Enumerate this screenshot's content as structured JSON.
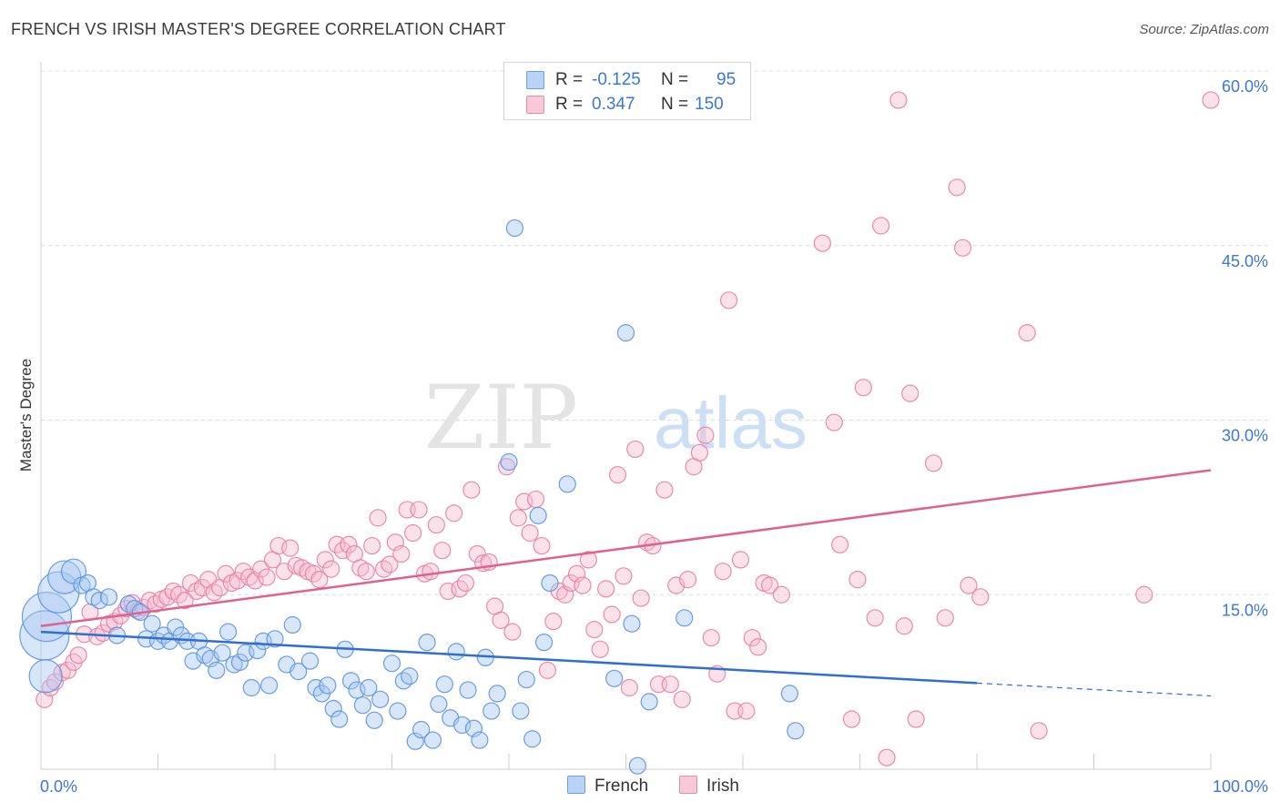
{
  "title": "FRENCH VS IRISH MASTER'S DEGREE CORRELATION CHART",
  "source": "Source: ZipAtlas.com",
  "watermark": {
    "part1": "ZIP",
    "part2": "atlas"
  },
  "legend": {
    "french": {
      "r_label": "R =",
      "r_value": "-0.125",
      "n_label": "N =",
      "n_value": "95"
    },
    "irish": {
      "r_label": "R =",
      "r_value": "0.347",
      "n_label": "N =",
      "n_value": "150"
    }
  },
  "bottom_legend": {
    "french": "French",
    "irish": "Irish"
  },
  "colors": {
    "french_fill": "#a9c8f2",
    "french_stroke": "#5b93de",
    "french_line": "#2e6fd0",
    "irish_fill": "#f6bcd0",
    "irish_stroke": "#e87fa3",
    "irish_line": "#e0608f",
    "tick_text": "#3a78d4",
    "grid": "#dcdcdc"
  },
  "chart_data": {
    "type": "scatter",
    "title": "FRENCH VS IRISH MASTER'S DEGREE CORRELATION CHART",
    "xlabel": "",
    "ylabel": "Master's Degree",
    "xlim": [
      0,
      100
    ],
    "ylim": [
      0,
      60
    ],
    "x_tick_labels": [
      "0.0%",
      "100.0%"
    ],
    "y_ticks": [
      15,
      30,
      45,
      60
    ],
    "y_tick_labels": [
      "15.0%",
      "30.0%",
      "45.0%",
      "60.0%"
    ],
    "grid": true,
    "series": [
      {
        "name": "French",
        "r": -0.125,
        "n": 95,
        "trend": {
          "x0": 0,
          "y0": 11.8,
          "x1": 80,
          "y1": 7.4,
          "dash_to_x": 100,
          "dash_to_y": 6.3
        },
        "points": [
          [
            0.3,
            11.5,
            3
          ],
          [
            0.5,
            13.1,
            3
          ],
          [
            0.4,
            8.0,
            2
          ],
          [
            1.5,
            15.2,
            2.5
          ],
          [
            2.0,
            16.5,
            2
          ],
          [
            2.8,
            17.0,
            1.5
          ],
          [
            3.5,
            15.8,
            1
          ],
          [
            4.0,
            16.0,
            1
          ],
          [
            4.5,
            14.8,
            1
          ],
          [
            5.0,
            14.5,
            1
          ],
          [
            5.8,
            14.8,
            1
          ],
          [
            6.5,
            11.5,
            1
          ],
          [
            7.5,
            14.2,
            1
          ],
          [
            8.0,
            13.8,
            1
          ],
          [
            8.5,
            13.5,
            1
          ],
          [
            9.0,
            11.2,
            1
          ],
          [
            9.5,
            12.5,
            1
          ],
          [
            10.0,
            11.0,
            1
          ],
          [
            10.5,
            11.5,
            1
          ],
          [
            11.0,
            11.0,
            1
          ],
          [
            11.5,
            12.2,
            1
          ],
          [
            12.0,
            11.5,
            1
          ],
          [
            12.5,
            11.0,
            1
          ],
          [
            13.0,
            9.3,
            1
          ],
          [
            13.5,
            11.0,
            1
          ],
          [
            14.0,
            9.8,
            1
          ],
          [
            14.5,
            9.5,
            1
          ],
          [
            15.0,
            8.5,
            1
          ],
          [
            15.5,
            10.0,
            1
          ],
          [
            16.0,
            11.8,
            1
          ],
          [
            16.5,
            9.0,
            1
          ],
          [
            17.0,
            9.2,
            1
          ],
          [
            17.5,
            10.0,
            1
          ],
          [
            18.0,
            7.0,
            1
          ],
          [
            18.5,
            10.2,
            1
          ],
          [
            19.0,
            11.0,
            1
          ],
          [
            19.5,
            7.2,
            1
          ],
          [
            20.0,
            11.2,
            1
          ],
          [
            21.0,
            9.0,
            1
          ],
          [
            21.5,
            12.4,
            1
          ],
          [
            22.0,
            8.4,
            1
          ],
          [
            23.0,
            9.3,
            1
          ],
          [
            23.5,
            7.0,
            1
          ],
          [
            24.0,
            6.5,
            1
          ],
          [
            24.5,
            7.2,
            1
          ],
          [
            25.0,
            5.2,
            1
          ],
          [
            25.5,
            4.3,
            1
          ],
          [
            26.0,
            10.3,
            1
          ],
          [
            26.5,
            7.6,
            1
          ],
          [
            27.0,
            6.8,
            1
          ],
          [
            27.5,
            5.5,
            1
          ],
          [
            28.0,
            7.0,
            1
          ],
          [
            28.5,
            4.2,
            1
          ],
          [
            29.0,
            6.0,
            1
          ],
          [
            30.0,
            9.1,
            1
          ],
          [
            30.5,
            5.0,
            1
          ],
          [
            31.0,
            7.6,
            1
          ],
          [
            31.5,
            8.0,
            1
          ],
          [
            32.0,
            2.4,
            1
          ],
          [
            32.5,
            3.4,
            1
          ],
          [
            33.0,
            10.9,
            1
          ],
          [
            33.5,
            2.5,
            1
          ],
          [
            34.0,
            5.6,
            1
          ],
          [
            34.5,
            7.3,
            1
          ],
          [
            35.0,
            4.4,
            1
          ],
          [
            35.5,
            10.1,
            1
          ],
          [
            36.0,
            3.8,
            1
          ],
          [
            36.5,
            6.8,
            1
          ],
          [
            37.0,
            3.5,
            1
          ],
          [
            37.5,
            2.5,
            1
          ],
          [
            38.0,
            9.6,
            1
          ],
          [
            38.5,
            5.0,
            1
          ],
          [
            39.0,
            6.5,
            1
          ],
          [
            40.0,
            26.4,
            1
          ],
          [
            40.5,
            46.5,
            1
          ],
          [
            41.0,
            5.0,
            1
          ],
          [
            41.5,
            7.7,
            1
          ],
          [
            42.0,
            2.6,
            1
          ],
          [
            42.5,
            21.8,
            1
          ],
          [
            43.0,
            10.9,
            1
          ],
          [
            43.5,
            16.0,
            1
          ],
          [
            45.0,
            24.5,
            1
          ],
          [
            49.0,
            7.8,
            1
          ],
          [
            50.0,
            37.5,
            1
          ],
          [
            50.5,
            12.5,
            1
          ],
          [
            51.0,
            0.3,
            1
          ],
          [
            52.0,
            5.8,
            1
          ],
          [
            55.0,
            13.0,
            1
          ],
          [
            64.0,
            6.5,
            1
          ],
          [
            64.5,
            3.3,
            1
          ]
        ]
      },
      {
        "name": "Irish",
        "r": 0.347,
        "n": 150,
        "trend": {
          "x0": 0,
          "y0": 12.3,
          "x1": 100,
          "y1": 25.7
        },
        "points": [
          [
            0.3,
            6.0,
            1
          ],
          [
            0.8,
            7.0,
            1
          ],
          [
            1.2,
            7.5,
            1
          ],
          [
            1.8,
            8.3,
            1
          ],
          [
            2.3,
            8.5,
            1
          ],
          [
            2.8,
            9.2,
            1
          ],
          [
            3.2,
            9.8,
            1
          ],
          [
            3.7,
            11.6,
            1
          ],
          [
            4.2,
            13.5,
            1
          ],
          [
            4.8,
            11.4,
            1
          ],
          [
            5.3,
            11.7,
            1
          ],
          [
            5.8,
            12.5,
            1
          ],
          [
            6.3,
            12.7,
            1
          ],
          [
            6.8,
            13.2,
            1
          ],
          [
            7.3,
            13.8,
            1
          ],
          [
            7.8,
            14.3,
            1
          ],
          [
            8.3,
            13.6,
            1
          ],
          [
            8.8,
            13.9,
            1
          ],
          [
            9.3,
            14.5,
            1
          ],
          [
            9.8,
            14.2,
            1
          ],
          [
            10.3,
            14.6,
            1
          ],
          [
            10.8,
            14.8,
            1
          ],
          [
            11.3,
            15.3,
            1
          ],
          [
            11.8,
            15.0,
            1
          ],
          [
            12.3,
            14.5,
            1
          ],
          [
            12.8,
            16.0,
            1
          ],
          [
            13.3,
            15.3,
            1
          ],
          [
            13.8,
            15.6,
            1
          ],
          [
            14.3,
            16.3,
            1
          ],
          [
            14.8,
            15.2,
            1
          ],
          [
            15.3,
            15.6,
            1
          ],
          [
            15.8,
            16.8,
            1
          ],
          [
            16.3,
            16.0,
            1
          ],
          [
            16.8,
            16.2,
            1
          ],
          [
            17.3,
            17.0,
            1
          ],
          [
            17.8,
            16.5,
            1
          ],
          [
            18.3,
            16.2,
            1
          ],
          [
            18.8,
            17.2,
            1
          ],
          [
            19.3,
            16.5,
            1
          ],
          [
            19.8,
            18.0,
            1
          ],
          [
            20.3,
            19.2,
            1
          ],
          [
            20.8,
            17.0,
            1
          ],
          [
            21.3,
            19.0,
            1
          ],
          [
            21.8,
            17.5,
            1
          ],
          [
            22.3,
            17.3,
            1
          ],
          [
            22.8,
            17.0,
            1
          ],
          [
            23.3,
            16.8,
            1
          ],
          [
            23.8,
            16.3,
            1
          ],
          [
            24.3,
            18.0,
            1
          ],
          [
            24.8,
            17.2,
            1
          ],
          [
            25.3,
            19.3,
            1
          ],
          [
            25.8,
            18.8,
            1
          ],
          [
            26.3,
            19.3,
            1
          ],
          [
            26.8,
            18.5,
            1
          ],
          [
            27.3,
            17.3,
            1
          ],
          [
            27.8,
            17.0,
            1
          ],
          [
            28.3,
            19.2,
            1
          ],
          [
            28.8,
            21.6,
            1
          ],
          [
            29.3,
            17.2,
            1
          ],
          [
            29.8,
            17.6,
            1
          ],
          [
            30.3,
            19.5,
            1
          ],
          [
            30.8,
            18.5,
            1
          ],
          [
            31.3,
            22.3,
            1
          ],
          [
            31.8,
            20.3,
            1
          ],
          [
            32.3,
            22.3,
            1
          ],
          [
            32.8,
            16.8,
            1
          ],
          [
            33.3,
            17.0,
            1
          ],
          [
            33.8,
            21.0,
            1
          ],
          [
            34.3,
            18.8,
            1
          ],
          [
            34.8,
            15.3,
            1
          ],
          [
            35.3,
            22.0,
            1
          ],
          [
            35.8,
            15.5,
            1
          ],
          [
            36.3,
            16.0,
            1
          ],
          [
            36.8,
            24.0,
            1
          ],
          [
            37.3,
            18.5,
            1
          ],
          [
            37.8,
            17.7,
            1
          ],
          [
            38.3,
            17.8,
            1
          ],
          [
            38.8,
            14.0,
            1
          ],
          [
            39.3,
            12.8,
            1
          ],
          [
            39.8,
            26.0,
            1
          ],
          [
            40.3,
            11.8,
            1
          ],
          [
            40.8,
            21.6,
            1
          ],
          [
            41.3,
            23.0,
            1
          ],
          [
            41.8,
            20.3,
            1
          ],
          [
            42.3,
            23.2,
            1
          ],
          [
            42.8,
            19.2,
            1
          ],
          [
            43.3,
            8.5,
            1
          ],
          [
            43.8,
            12.7,
            1
          ],
          [
            44.3,
            15.3,
            1
          ],
          [
            44.8,
            15.0,
            1
          ],
          [
            45.3,
            16.0,
            1
          ],
          [
            45.8,
            16.8,
            1
          ],
          [
            46.3,
            15.8,
            1
          ],
          [
            46.8,
            18.0,
            1
          ],
          [
            47.3,
            12.0,
            1
          ],
          [
            47.8,
            10.3,
            1
          ],
          [
            48.3,
            15.5,
            1
          ],
          [
            48.8,
            13.3,
            1
          ],
          [
            49.3,
            25.3,
            1
          ],
          [
            49.8,
            16.6,
            1
          ],
          [
            50.3,
            7.0,
            1
          ],
          [
            50.8,
            27.5,
            1
          ],
          [
            51.3,
            14.7,
            1
          ],
          [
            51.8,
            19.5,
            1
          ],
          [
            52.3,
            19.2,
            1
          ],
          [
            52.8,
            7.3,
            1
          ],
          [
            53.3,
            24.0,
            1
          ],
          [
            53.8,
            7.3,
            1
          ],
          [
            54.3,
            15.8,
            1
          ],
          [
            54.8,
            6.0,
            1
          ],
          [
            55.3,
            16.3,
            1
          ],
          [
            55.8,
            26.0,
            1
          ],
          [
            56.3,
            27.2,
            1
          ],
          [
            56.8,
            28.7,
            1
          ],
          [
            57.3,
            11.3,
            1
          ],
          [
            57.8,
            8.2,
            1
          ],
          [
            58.3,
            17.0,
            1
          ],
          [
            58.8,
            40.3,
            1
          ],
          [
            59.3,
            5.0,
            1
          ],
          [
            59.8,
            18.0,
            1
          ],
          [
            60.3,
            5.0,
            1
          ],
          [
            60.8,
            11.3,
            1
          ],
          [
            61.3,
            10.5,
            1
          ],
          [
            61.8,
            16.0,
            1
          ],
          [
            62.3,
            15.8,
            1
          ],
          [
            63.3,
            15.0,
            1
          ],
          [
            66.8,
            45.2,
            1
          ],
          [
            67.8,
            29.8,
            1
          ],
          [
            68.3,
            19.3,
            1
          ],
          [
            69.3,
            4.3,
            1
          ],
          [
            69.8,
            16.3,
            1
          ],
          [
            70.3,
            32.8,
            1
          ],
          [
            71.3,
            13.0,
            1
          ],
          [
            71.8,
            46.7,
            1
          ],
          [
            72.3,
            1.0,
            1
          ],
          [
            73.3,
            57.5,
            1
          ],
          [
            73.8,
            12.3,
            1
          ],
          [
            74.3,
            32.3,
            1
          ],
          [
            74.8,
            4.3,
            1
          ],
          [
            76.3,
            26.3,
            1
          ],
          [
            77.3,
            13.0,
            1
          ],
          [
            78.3,
            50.0,
            1
          ],
          [
            78.8,
            44.8,
            1
          ],
          [
            79.3,
            15.8,
            1
          ],
          [
            80.3,
            14.8,
            1
          ],
          [
            84.3,
            37.5,
            1
          ],
          [
            85.3,
            3.3,
            1
          ],
          [
            94.3,
            15.0,
            1
          ],
          [
            100.0,
            57.5,
            1
          ]
        ]
      }
    ]
  }
}
